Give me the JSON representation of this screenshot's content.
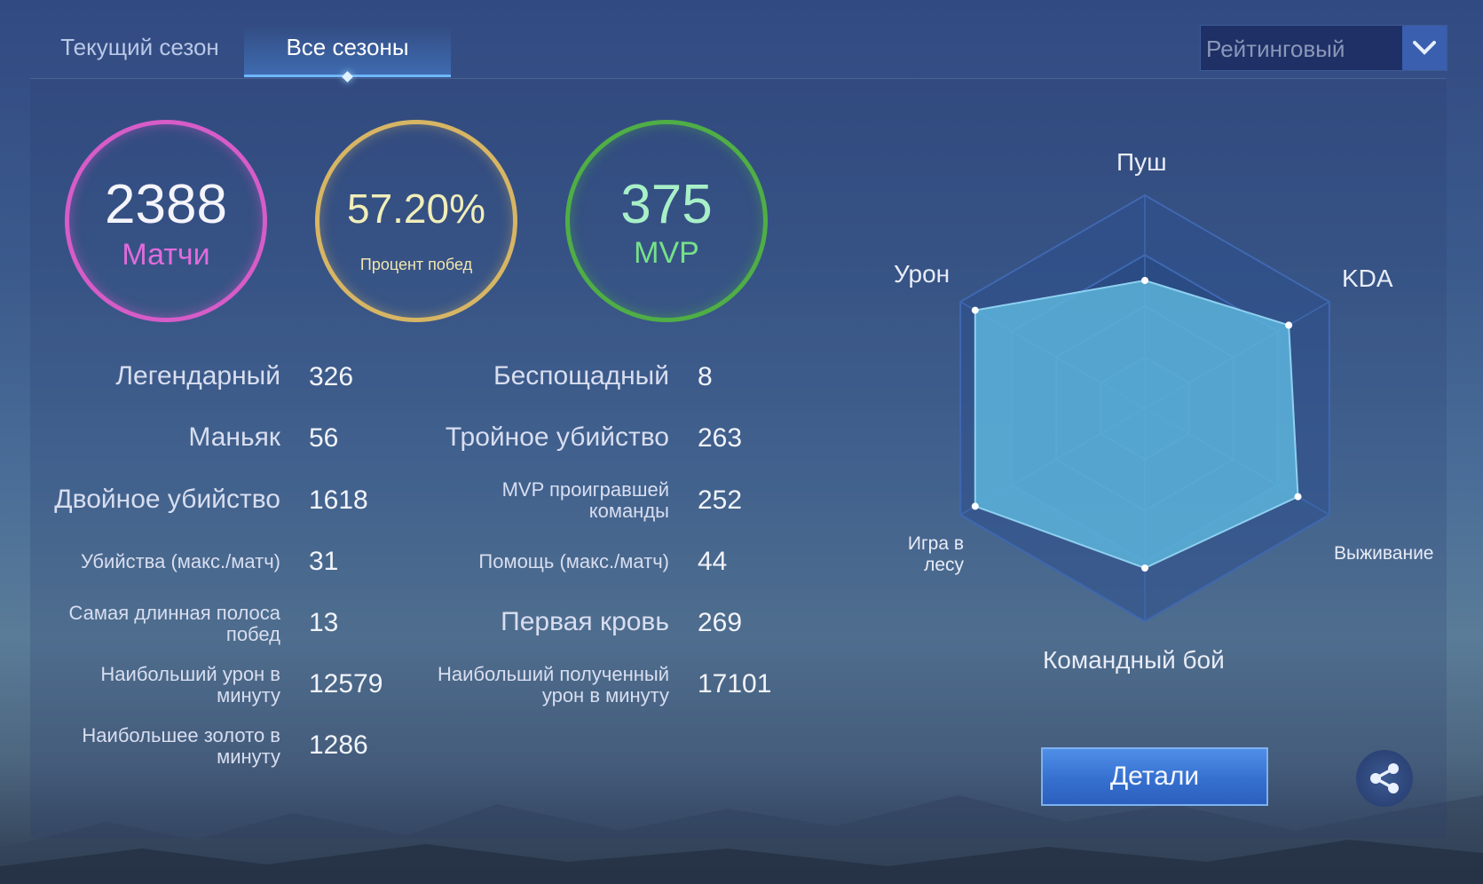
{
  "tabs": {
    "current_season": "Текущий сезон",
    "all_seasons": "Все сезоны"
  },
  "mode_select": {
    "value": "Рейтинговый"
  },
  "summary": {
    "matches": {
      "value": "2388",
      "label": "Матчи"
    },
    "win_rate": {
      "value": "57.20%",
      "label": "Процент побед"
    },
    "mvp": {
      "value": "375",
      "label": "MVP"
    }
  },
  "stats": {
    "left": [
      {
        "label": "Легендарный",
        "value": "326"
      },
      {
        "label": "Маньяк",
        "value": "56"
      },
      {
        "label": "Двойное убийство",
        "value": "1618"
      },
      {
        "label": "Убийства (макс./матч)",
        "value": "31"
      },
      {
        "label": "Самая длинная полоса побед",
        "value": "13"
      },
      {
        "label": "Наибольший урон в минуту",
        "value": "12579"
      },
      {
        "label": "Наибольшее золото в минуту",
        "value": "1286"
      }
    ],
    "right": [
      {
        "label": "Беспощадный",
        "value": "8"
      },
      {
        "label": "Тройное убийство",
        "value": "263"
      },
      {
        "label": "MVP проигравшей команды",
        "value": "252"
      },
      {
        "label": "Помощь (макс./матч)",
        "value": "44"
      },
      {
        "label": "Первая кровь",
        "value": "269"
      },
      {
        "label": "Наибольший полученный урон в минуту",
        "value": "17101"
      }
    ]
  },
  "radar": {
    "axes": [
      "Пуш",
      "KDA",
      "Выживание",
      "Командный бой",
      "Игра в лесу",
      "Урон"
    ],
    "values": [
      0.6,
      0.78,
      0.83,
      0.75,
      0.92,
      0.92
    ],
    "fill_color": "#5cb4dc"
  },
  "buttons": {
    "details": "Детали",
    "share_icon": "share-icon"
  }
}
